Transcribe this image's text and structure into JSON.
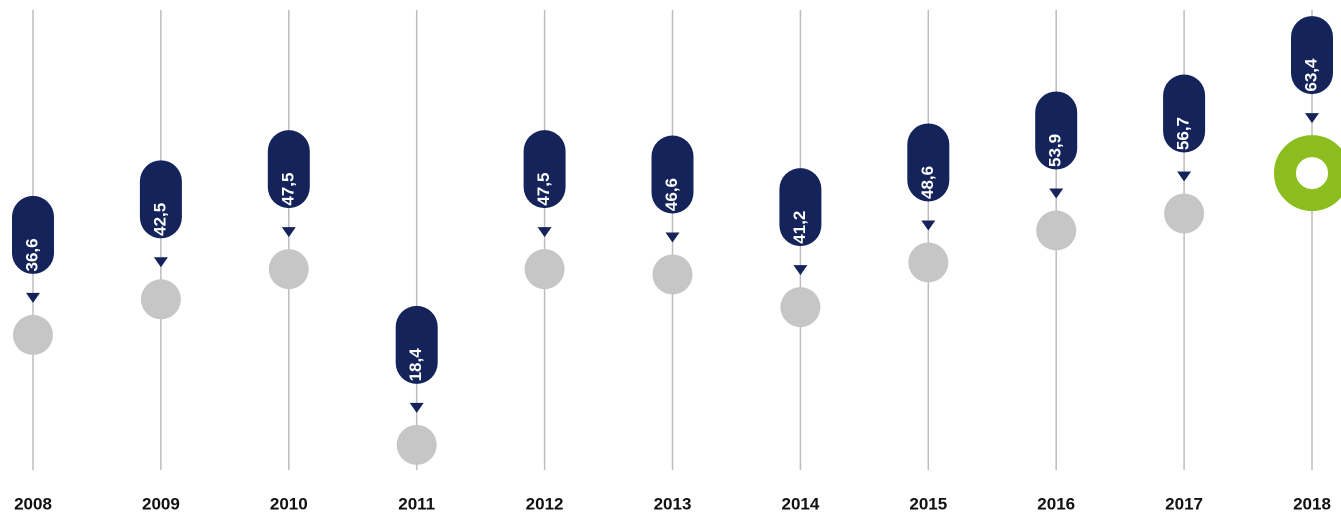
{
  "chart_data": {
    "type": "dot",
    "categories": [
      "2008",
      "2009",
      "2010",
      "2011",
      "2012",
      "2013",
      "2014",
      "2015",
      "2016",
      "2017",
      "2018"
    ],
    "values": [
      36.6,
      42.5,
      47.5,
      18.4,
      47.5,
      46.6,
      41.2,
      48.6,
      53.9,
      56.7,
      63.4
    ],
    "value_labels": [
      "36,6",
      "42,5",
      "47,5",
      "18,4",
      "47,5",
      "46,6",
      "41,2",
      "48,6",
      "53,9",
      "56,7",
      "63,4"
    ],
    "color": "#c6c6c6",
    "label_color": "#14245a",
    "point_colors": [
      "#c6c6c6",
      "#c6c6c6",
      "#c6c6c6",
      "#c6c6c6",
      "#c6c6c6",
      "#c6c6c6",
      "#c6c6c6",
      "#c6c6c6",
      "#c6c6c6",
      "#c6c6c6",
      "#8cbd1f"
    ]
  }
}
